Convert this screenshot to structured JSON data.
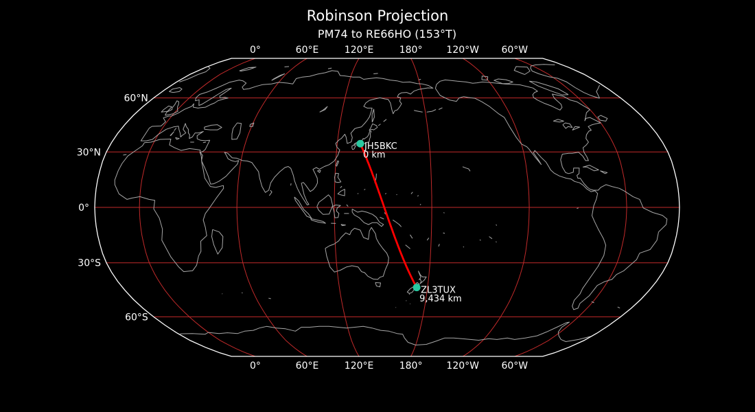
{
  "title": "Robinson Projection",
  "subtitle": "PM74 to RE66HO (153°T)",
  "colors": {
    "background": "#000000",
    "map_outline": "#ffffff",
    "gridlines": "#c22a2a",
    "coastlines": "#a8a8a8",
    "great_circle": "#ff0000",
    "marker": "#28c8a0",
    "text": "#ffffff"
  },
  "axes": {
    "top_lon_labels": [
      "0°",
      "60°E",
      "120°E",
      "180°",
      "120°W",
      "60°W"
    ],
    "bottom_lon_labels": [
      "0°",
      "60°E",
      "120°E",
      "180°",
      "120°W",
      "60°W"
    ],
    "left_lat_labels": [
      "60°N",
      "30°N",
      "0°",
      "30°S",
      "60°S"
    ]
  },
  "chart_data": {
    "type": "map",
    "projection": "Robinson",
    "center_lon_deg": 152.5,
    "lon_gridlines_deg": [
      0,
      60,
      120,
      180,
      -120,
      -60
    ],
    "lat_gridlines_deg": [
      60,
      30,
      0,
      -30,
      -60
    ],
    "stations": [
      {
        "callsign": "JH5BKC",
        "grid": "PM74",
        "lat": 34.48,
        "lon": 135.04,
        "distance_label": "0 km"
      },
      {
        "callsign": "ZL3TUX",
        "grid": "RE66HO",
        "lat": -43.4,
        "lon": 172.63,
        "distance_label": "9,434 km"
      }
    ],
    "great_circle_path": {
      "from_grid": "PM74",
      "to_grid": "RE66HO",
      "bearing_label": "153°T",
      "distance_label": "9,434 km"
    }
  }
}
